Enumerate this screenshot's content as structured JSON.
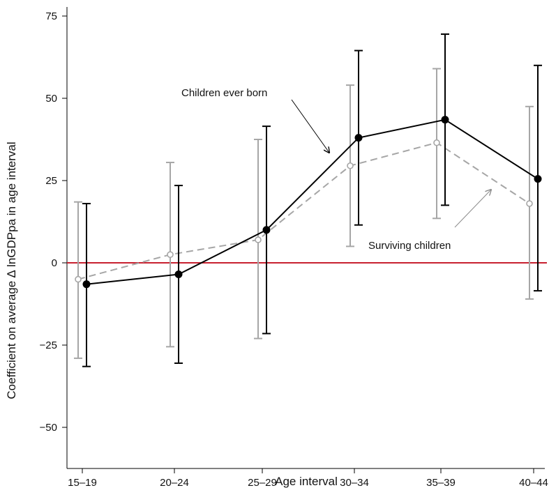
{
  "chart_data": {
    "type": "line",
    "xlabel": "Age interval",
    "ylabel": "Coefficient on average ∆ lnGDPpa in age interval",
    "categories": [
      "15–19",
      "20–24",
      "25–29",
      "30–34",
      "35–39",
      "40–44"
    ],
    "yticks": [
      -50,
      -25,
      0,
      25,
      50,
      75
    ],
    "yticklabels": [
      "−50",
      "−25",
      "0",
      "25",
      "50",
      "75"
    ],
    "ylim": [
      -53,
      76
    ],
    "grid": false,
    "reference_line": {
      "y": 0,
      "color": "#c8202f"
    },
    "series": [
      {
        "name": "Surviving children",
        "color": "#a6a6a6",
        "style": "dashed",
        "marker": "hollow-circle",
        "values": [
          -5,
          2.5,
          7,
          29.5,
          36.5,
          18
        ],
        "ci_low": [
          -29,
          -25.5,
          -23,
          5,
          13.5,
          -11
        ],
        "ci_high": [
          18.5,
          30.5,
          37.5,
          54,
          59,
          47.5
        ]
      },
      {
        "name": "Children ever born",
        "color": "#000000",
        "style": "solid",
        "marker": "filled-circle",
        "values": [
          -6.5,
          -3.5,
          10,
          38,
          43.5,
          25.5
        ],
        "ci_low": [
          -31.5,
          -30.5,
          -21.5,
          11.5,
          17.5,
          -8.5
        ],
        "ci_high": [
          18,
          23.5,
          41.5,
          64.5,
          69.5,
          60
        ]
      }
    ],
    "annotations": [
      {
        "text": "Children ever born",
        "series": "Children ever born"
      },
      {
        "text": "Surviving children",
        "series": "Surviving children"
      }
    ]
  }
}
